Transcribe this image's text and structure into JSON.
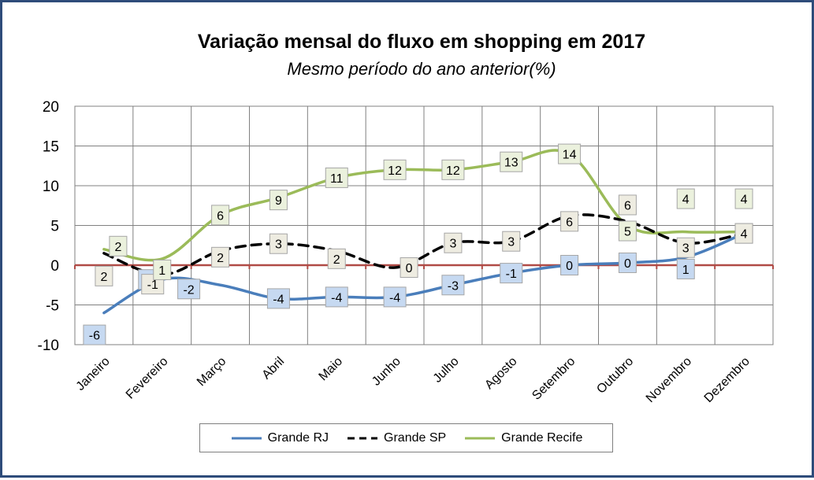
{
  "chart_data": {
    "type": "line",
    "title": "Variação mensal do fluxo em shopping em 2017",
    "subtitle": "Mesmo período do ano anterior(%)",
    "categories": [
      "Janeiro",
      "Fevereiro",
      "Março",
      "Abril",
      "Maio",
      "Junho",
      "Julho",
      "Agosto",
      "Setembro",
      "Outubro",
      "Novembro",
      "Dezembro"
    ],
    "ylim": [
      -10,
      20
    ],
    "yticks": [
      "20",
      "15",
      "10",
      "5",
      "0",
      "-5",
      "-10"
    ],
    "grid": true,
    "legend_position": "bottom",
    "series": [
      {
        "name": "Grande RJ",
        "color": "#4a7ebb",
        "dash": "solid",
        "label_fill": "#c6d9f1",
        "values": [
          -6,
          -1.8,
          -2.5,
          -4.2,
          -4,
          -4,
          -2.5,
          -1,
          0,
          0.3,
          1,
          4
        ],
        "labels": [
          "-6",
          "-2",
          "-2",
          "-4",
          "-4",
          "-4",
          "-3",
          "-1",
          "0",
          "0",
          "1",
          "4"
        ]
      },
      {
        "name": "Grande SP",
        "color": "#000000",
        "dash": "dashed",
        "label_fill": "#eeece1",
        "values": [
          1.5,
          -1.2,
          1.8,
          2.7,
          1.8,
          -0.3,
          2.8,
          3,
          6.2,
          5.5,
          2.8,
          4
        ],
        "labels": [
          "2",
          "-1",
          "2",
          "3",
          "2",
          "0",
          "3",
          "3",
          "6",
          "6",
          "3",
          "4"
        ]
      },
      {
        "name": "Grande Recife",
        "color": "#9bbb59",
        "dash": "solid",
        "label_fill": "#ebf1dd",
        "values": [
          2,
          0.8,
          6.3,
          8.5,
          11,
          12,
          12,
          13,
          14,
          5,
          4.2,
          4.2
        ],
        "labels": [
          "2",
          "1",
          "6",
          "9",
          "11",
          "12",
          "12",
          "13",
          "14",
          "5",
          "4",
          "4"
        ]
      }
    ]
  }
}
